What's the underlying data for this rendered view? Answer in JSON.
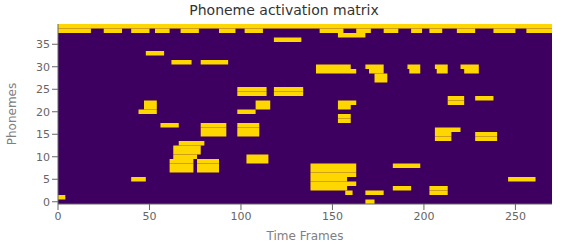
{
  "chart_data": {
    "type": "heatmap",
    "title": "Phoneme activation matrix",
    "x_label": "Time Frames",
    "y_label": "Phonemes",
    "bg_color": "#3d0060",
    "active_color": "#ffd700",
    "xlim": [
      0,
      270
    ],
    "ylim": [
      -0.5,
      39.5
    ],
    "xticks": [
      0,
      50,
      100,
      150,
      200,
      250
    ],
    "yticks": [
      0,
      5,
      10,
      15,
      20,
      25,
      30,
      35
    ],
    "grid": false,
    "segments": [
      {
        "phoneme": 39,
        "start": 0,
        "end": 270
      },
      {
        "phoneme": 38,
        "start": 0,
        "end": 18
      },
      {
        "phoneme": 38,
        "start": 25,
        "end": 35
      },
      {
        "phoneme": 38,
        "start": 40,
        "end": 50
      },
      {
        "phoneme": 38,
        "start": 53,
        "end": 61
      },
      {
        "phoneme": 38,
        "start": 67,
        "end": 77
      },
      {
        "phoneme": 38,
        "start": 88,
        "end": 97
      },
      {
        "phoneme": 38,
        "start": 102,
        "end": 112
      },
      {
        "phoneme": 38,
        "start": 143,
        "end": 156
      },
      {
        "phoneme": 38,
        "start": 163,
        "end": 171
      },
      {
        "phoneme": 38,
        "start": 178,
        "end": 186
      },
      {
        "phoneme": 38,
        "start": 193,
        "end": 199
      },
      {
        "phoneme": 38,
        "start": 203,
        "end": 210
      },
      {
        "phoneme": 38,
        "start": 218,
        "end": 228
      },
      {
        "phoneme": 38,
        "start": 238,
        "end": 250
      },
      {
        "phoneme": 38,
        "start": 256,
        "end": 270
      },
      {
        "phoneme": 37,
        "start": 153,
        "end": 168
      },
      {
        "phoneme": 36,
        "start": 118,
        "end": 133
      },
      {
        "phoneme": 33,
        "start": 48,
        "end": 58
      },
      {
        "phoneme": 31,
        "start": 62,
        "end": 73
      },
      {
        "phoneme": 31,
        "start": 78,
        "end": 93
      },
      {
        "phoneme": 30,
        "start": 141,
        "end": 160
      },
      {
        "phoneme": 30,
        "start": 168,
        "end": 178
      },
      {
        "phoneme": 30,
        "start": 191,
        "end": 198
      },
      {
        "phoneme": 30,
        "start": 206,
        "end": 213
      },
      {
        "phoneme": 30,
        "start": 220,
        "end": 230
      },
      {
        "phoneme": 29,
        "start": 141,
        "end": 163
      },
      {
        "phoneme": 29,
        "start": 170,
        "end": 178
      },
      {
        "phoneme": 29,
        "start": 192,
        "end": 198
      },
      {
        "phoneme": 29,
        "start": 207,
        "end": 213
      },
      {
        "phoneme": 29,
        "start": 222,
        "end": 230
      },
      {
        "phoneme": 28,
        "start": 173,
        "end": 180
      },
      {
        "phoneme": 27,
        "start": 173,
        "end": 180
      },
      {
        "phoneme": 25,
        "start": 98,
        "end": 114
      },
      {
        "phoneme": 25,
        "start": 118,
        "end": 134
      },
      {
        "phoneme": 24,
        "start": 98,
        "end": 114
      },
      {
        "phoneme": 24,
        "start": 118,
        "end": 134
      },
      {
        "phoneme": 23,
        "start": 213,
        "end": 222
      },
      {
        "phoneme": 23,
        "start": 228,
        "end": 238
      },
      {
        "phoneme": 22,
        "start": 47,
        "end": 54
      },
      {
        "phoneme": 22,
        "start": 108,
        "end": 116
      },
      {
        "phoneme": 22,
        "start": 153,
        "end": 163
      },
      {
        "phoneme": 22,
        "start": 213,
        "end": 222
      },
      {
        "phoneme": 21,
        "start": 47,
        "end": 54
      },
      {
        "phoneme": 21,
        "start": 108,
        "end": 116
      },
      {
        "phoneme": 21,
        "start": 153,
        "end": 160
      },
      {
        "phoneme": 20,
        "start": 44,
        "end": 54
      },
      {
        "phoneme": 20,
        "start": 98,
        "end": 108
      },
      {
        "phoneme": 19,
        "start": 153,
        "end": 160
      },
      {
        "phoneme": 18,
        "start": 153,
        "end": 160
      },
      {
        "phoneme": 17,
        "start": 56,
        "end": 66
      },
      {
        "phoneme": 17,
        "start": 78,
        "end": 92
      },
      {
        "phoneme": 17,
        "start": 98,
        "end": 110
      },
      {
        "phoneme": 16,
        "start": 78,
        "end": 92
      },
      {
        "phoneme": 16,
        "start": 98,
        "end": 110
      },
      {
        "phoneme": 16,
        "start": 206,
        "end": 220
      },
      {
        "phoneme": 15,
        "start": 78,
        "end": 92
      },
      {
        "phoneme": 15,
        "start": 98,
        "end": 110
      },
      {
        "phoneme": 15,
        "start": 206,
        "end": 215
      },
      {
        "phoneme": 15,
        "start": 228,
        "end": 240
      },
      {
        "phoneme": 14,
        "start": 206,
        "end": 215
      },
      {
        "phoneme": 14,
        "start": 228,
        "end": 240
      },
      {
        "phoneme": 13,
        "start": 66,
        "end": 80
      },
      {
        "phoneme": 12,
        "start": 63,
        "end": 78
      },
      {
        "phoneme": 11,
        "start": 63,
        "end": 78
      },
      {
        "phoneme": 10,
        "start": 63,
        "end": 76
      },
      {
        "phoneme": 10,
        "start": 103,
        "end": 115
      },
      {
        "phoneme": 9,
        "start": 61,
        "end": 74
      },
      {
        "phoneme": 9,
        "start": 76,
        "end": 88
      },
      {
        "phoneme": 9,
        "start": 103,
        "end": 115
      },
      {
        "phoneme": 8,
        "start": 61,
        "end": 74
      },
      {
        "phoneme": 8,
        "start": 76,
        "end": 88
      },
      {
        "phoneme": 8,
        "start": 138,
        "end": 163
      },
      {
        "phoneme": 8,
        "start": 183,
        "end": 198
      },
      {
        "phoneme": 7,
        "start": 61,
        "end": 74
      },
      {
        "phoneme": 7,
        "start": 76,
        "end": 88
      },
      {
        "phoneme": 7,
        "start": 138,
        "end": 163
      },
      {
        "phoneme": 6,
        "start": 138,
        "end": 163
      },
      {
        "phoneme": 5,
        "start": 40,
        "end": 48
      },
      {
        "phoneme": 5,
        "start": 138,
        "end": 158
      },
      {
        "phoneme": 5,
        "start": 246,
        "end": 261
      },
      {
        "phoneme": 4,
        "start": 138,
        "end": 163
      },
      {
        "phoneme": 3,
        "start": 138,
        "end": 158
      },
      {
        "phoneme": 3,
        "start": 183,
        "end": 193
      },
      {
        "phoneme": 3,
        "start": 203,
        "end": 213
      },
      {
        "phoneme": 2,
        "start": 157,
        "end": 161
      },
      {
        "phoneme": 2,
        "start": 168,
        "end": 178
      },
      {
        "phoneme": 2,
        "start": 203,
        "end": 213
      },
      {
        "phoneme": 1,
        "start": 0,
        "end": 4
      },
      {
        "phoneme": 0,
        "start": 168,
        "end": 173
      }
    ]
  }
}
